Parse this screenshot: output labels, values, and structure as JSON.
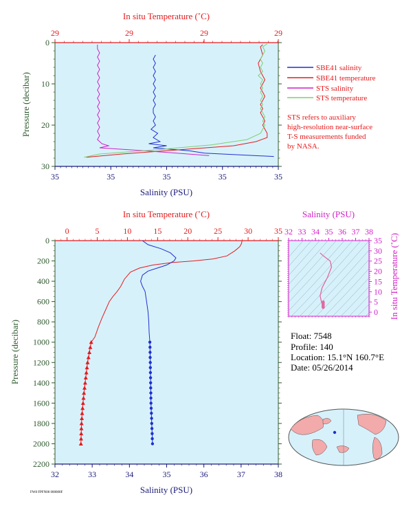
{
  "colors": {
    "red": "#e41a1c",
    "blue": "#1f2fd0",
    "magenta": "#d21fc8",
    "green": "#7fcf6f",
    "axis_green": "#2e5a2e",
    "plot_bg": "#d7f1fb",
    "navy": "#1a1a7a",
    "black": "#000000"
  },
  "footer_id": "FW8 FPFN00 000000F",
  "info": {
    "float": "Float:  7548",
    "profile": "Profile:  140",
    "location": "Location:  15.1°N  160.7°E",
    "date": "Date:  05/26/2014"
  },
  "sts_note": [
    "STS refers to auxiliary",
    "high-resolution near-surface",
    "T-S measurements funded",
    "by NASA."
  ],
  "chart_data": [
    {
      "type": "line",
      "panel": "near-surface",
      "title": "In situ Temperature (˚C)",
      "xlabel": "Salinity (PSU)",
      "ylabel": "Pressure (decibar)",
      "y_inverted": true,
      "ylim": [
        0,
        30
      ],
      "yticks": [
        "0",
        "10",
        "20",
        "30"
      ],
      "top_ticks": [
        "29",
        "29",
        "29",
        "29"
      ],
      "bottom_ticks": [
        "35",
        "35",
        "35",
        "35",
        "35"
      ],
      "legend": [
        {
          "name": "SBE41 salinity",
          "color": "#1f2fd0"
        },
        {
          "name": "SBE41 temperature",
          "color": "#e41a1c"
        },
        {
          "name": "STS salinity",
          "color": "#d21fc8"
        },
        {
          "name": "STS temperature",
          "color": "#7fcf6f"
        }
      ],
      "series": [
        {
          "name": "SBE41 salinity",
          "color": "#1f2fd0",
          "x_frac": [
            0.45,
            0.44,
            0.45,
            0.44,
            0.45,
            0.44,
            0.45,
            0.44,
            0.45,
            0.44,
            0.45,
            0.44,
            0.45,
            0.44,
            0.44,
            0.45,
            0.44,
            0.45,
            0.43,
            0.46,
            0.44,
            0.47,
            0.42,
            0.5,
            0.44,
            0.6,
            0.67,
            0.98
          ],
          "y": [
            3,
            4,
            5,
            6,
            7,
            8,
            9,
            10,
            11,
            12,
            13,
            14,
            15,
            16,
            17,
            18,
            19,
            20,
            21,
            22,
            23,
            24,
            24.5,
            25,
            25.5,
            26.2,
            26.8,
            27.6
          ]
        },
        {
          "name": "SBE41 temperature",
          "color": "#e41a1c",
          "x_frac": [
            0.93,
            0.92,
            0.93,
            0.91,
            0.92,
            0.94,
            0.93,
            0.92,
            0.93,
            0.94,
            0.93,
            0.92,
            0.93,
            0.92,
            0.93,
            0.94,
            0.93,
            0.94,
            0.95,
            0.95,
            0.9,
            0.8,
            0.55,
            0.3,
            0.14
          ],
          "y": [
            0.5,
            1,
            3,
            5,
            7,
            9,
            10,
            11,
            12,
            13,
            14,
            15,
            16,
            17,
            18,
            19,
            20,
            21,
            22,
            23,
            24,
            25,
            26,
            27,
            27.8
          ]
        },
        {
          "name": "STS salinity",
          "color": "#d21fc8",
          "x_frac": [
            0.19,
            0.19,
            0.2,
            0.19,
            0.2,
            0.19,
            0.2,
            0.19,
            0.2,
            0.19,
            0.2,
            0.19,
            0.2,
            0.19,
            0.2,
            0.19,
            0.2,
            0.19,
            0.2,
            0.19,
            0.2,
            0.19,
            0.2,
            0.19,
            0.21,
            0.24,
            0.2,
            0.4,
            0.69
          ],
          "y": [
            0.5,
            1.5,
            2.5,
            3.5,
            4.5,
            5.5,
            6.5,
            7.5,
            8.5,
            9.5,
            10.5,
            11.5,
            12.5,
            13.5,
            14.5,
            15.5,
            16.5,
            17.5,
            18.5,
            19.5,
            20.5,
            21.5,
            22.5,
            23.5,
            24.5,
            25,
            25.5,
            26.2,
            27.4
          ]
        },
        {
          "name": "STS temperature",
          "color": "#7fcf6f",
          "x_frac": [
            0.95,
            0.93,
            0.94,
            0.93,
            0.92,
            0.93,
            0.92,
            0.93,
            0.91,
            0.93,
            0.92,
            0.93,
            0.92,
            0.93,
            0.92,
            0.93,
            0.92,
            0.93,
            0.94,
            0.93,
            0.94,
            0.93,
            0.92,
            0.86,
            0.7,
            0.45,
            0.2,
            0.13
          ],
          "y": [
            0.3,
            1,
            2,
            3,
            4,
            5,
            6,
            7,
            8,
            9,
            10,
            11,
            12,
            13,
            14,
            15,
            16,
            17,
            18,
            19,
            20,
            21,
            22,
            23.5,
            24.8,
            26,
            27,
            27.8
          ]
        }
      ]
    },
    {
      "type": "line",
      "panel": "full-profile",
      "title": "In situ Temperature (˚C)",
      "xlabel": "Salinity (PSU)",
      "ylabel": "Pressure (decibar)",
      "y_inverted": true,
      "ylim": [
        0,
        2200
      ],
      "xlim_salinity": [
        32,
        38
      ],
      "xlim_temperature": [
        -2,
        35
      ],
      "temperature_ticks": [
        "0",
        "5",
        "10",
        "15",
        "20",
        "25",
        "30",
        "35"
      ],
      "salinity_ticks": [
        "32",
        "33",
        "34",
        "35",
        "36",
        "37",
        "38"
      ],
      "pressure_ticks": [
        "0",
        "200",
        "400",
        "600",
        "800",
        "1000",
        "1200",
        "1400",
        "1600",
        "1800",
        "2000",
        "2200"
      ],
      "series": [
        {
          "name": "temperature",
          "color": "#e41a1c",
          "temperature": [
            29.0,
            28.9,
            28.6,
            27.8,
            26.5,
            24.2,
            21.0,
            17.5,
            14.2,
            12.0,
            10.5,
            9.5,
            8.9,
            8.3,
            7.6,
            7.0,
            6.4,
            5.8,
            5.2,
            4.6,
            4.0,
            3.7,
            3.4,
            3.2,
            3.0,
            2.8,
            2.65,
            2.5,
            2.4,
            2.3
          ],
          "pressure": [
            0,
            30,
            60,
            100,
            150,
            180,
            200,
            215,
            240,
            270,
            310,
            380,
            450,
            500,
            550,
            600,
            680,
            760,
            850,
            950,
            1000,
            1100,
            1200,
            1300,
            1400,
            1500,
            1600,
            1700,
            1800,
            2000
          ]
        },
        {
          "name": "salinity",
          "color": "#1f2fd0",
          "salinity": [
            34.35,
            34.5,
            34.85,
            35.1,
            35.25,
            35.2,
            35.0,
            34.75,
            34.5,
            34.35,
            34.3,
            34.35,
            34.42,
            34.46,
            34.5,
            34.52,
            34.53,
            34.55,
            34.56,
            34.57,
            34.58,
            34.6,
            34.61,
            34.62
          ],
          "pressure": [
            0,
            40,
            80,
            120,
            170,
            200,
            240,
            270,
            300,
            340,
            400,
            450,
            500,
            600,
            700,
            800,
            900,
            1000,
            1200,
            1400,
            1600,
            1800,
            1900,
            2000
          ]
        },
        {
          "name": "temperature samples",
          "color": "#e41a1c",
          "marker": "triangle",
          "temperature": [
            4.0,
            3.7,
            3.4,
            3.2,
            3.0,
            2.8,
            2.65,
            2.5,
            2.4,
            2.3
          ],
          "pressure": [
            1000,
            1100,
            1200,
            1300,
            1400,
            1500,
            1600,
            1700,
            1800,
            2000
          ]
        },
        {
          "name": "salinity samples",
          "color": "#1f2fd0",
          "marker": "circle",
          "salinity": [
            34.55,
            34.56,
            34.57,
            34.58,
            34.6,
            34.61,
            34.62
          ],
          "pressure": [
            1000,
            1200,
            1400,
            1600,
            1800,
            1900,
            2000
          ]
        }
      ]
    },
    {
      "type": "scatter",
      "panel": "ts-diagram",
      "title": "Salinity (PSU)",
      "ylabel": "In situ Temperature (˚C)",
      "salinity_ticks": [
        "32",
        "33",
        "34",
        "35",
        "36",
        "37",
        "38"
      ],
      "temperature_ticks": [
        "0",
        "5",
        "10",
        "15",
        "20",
        "25",
        "30",
        "35"
      ],
      "xlim": [
        32,
        38
      ],
      "ylim": [
        -2,
        35
      ],
      "series": [
        {
          "name": "T-S",
          "color": "#e06aa0",
          "salinity": [
            34.35,
            34.6,
            35.1,
            35.2,
            34.9,
            34.5,
            34.35,
            34.45,
            34.55
          ],
          "temperature": [
            29,
            27.5,
            25,
            22,
            17,
            12,
            8,
            5,
            3
          ]
        }
      ]
    },
    {
      "type": "map",
      "panel": "location-map",
      "marker": {
        "lat": 15.1,
        "lon": 160.7,
        "color": "#1f2fd0"
      }
    }
  ]
}
